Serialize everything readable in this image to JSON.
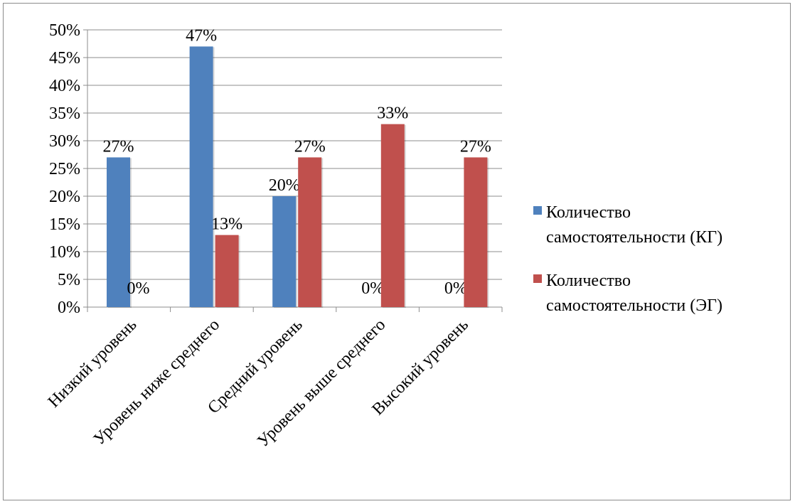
{
  "chart_data": {
    "type": "bar",
    "categories": [
      "Низкий уровень",
      "Уровень ниже среднего",
      "Средний уровень",
      "Уровень выше среднего",
      "Высокий уровень"
    ],
    "series": [
      {
        "name": "Количество самостоятельности (КГ)",
        "values": [
          27,
          47,
          20,
          0,
          0
        ],
        "color": "#4f81bd"
      },
      {
        "name": "Количество самостоятельности (ЭГ)",
        "values": [
          0,
          13,
          27,
          33,
          27
        ],
        "color": "#c0504d"
      }
    ],
    "data_labels": [
      [
        "27%",
        "47%",
        "20%",
        "0%",
        "0%"
      ],
      [
        "0%",
        "13%",
        "27%",
        "33%",
        "27%"
      ]
    ],
    "y_ticks": [
      "0%",
      "5%",
      "10%",
      "15%",
      "20%",
      "25%",
      "30%",
      "35%",
      "40%",
      "45%",
      "50%"
    ],
    "ylim": [
      0,
      50
    ],
    "unit": "%",
    "grid": true,
    "legend_position": "right",
    "title": "",
    "xlabel": "",
    "ylabel": ""
  }
}
